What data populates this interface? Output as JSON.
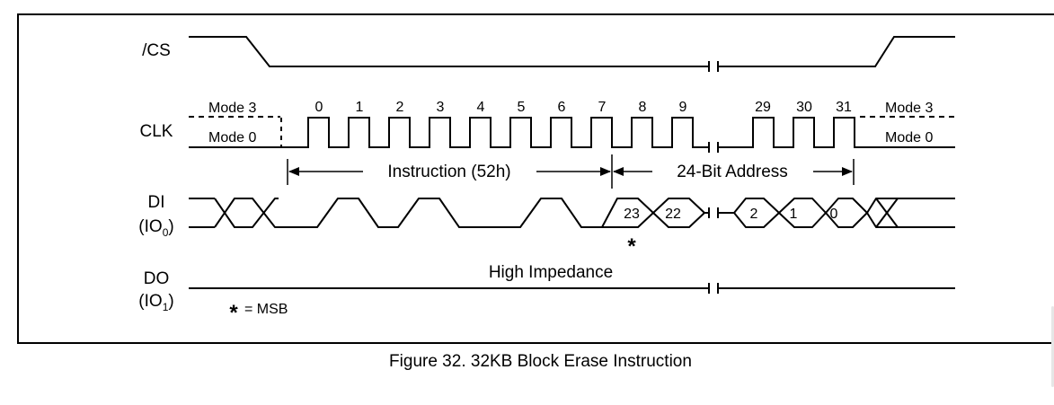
{
  "signals": {
    "cs": "/CS",
    "clk": "CLK",
    "di_main": "DI",
    "di_io": "(IO",
    "di_sub": "0",
    "di_close": ")",
    "do_main": "DO",
    "do_io": "(IO",
    "do_sub": "1",
    "do_close": ")"
  },
  "modes": {
    "left_top": "Mode 3",
    "left_bottom": "Mode 0",
    "right_top": "Mode 3",
    "right_bottom": "Mode 0"
  },
  "clock_numbers": [
    "0",
    "1",
    "2",
    "3",
    "4",
    "5",
    "6",
    "7",
    "8",
    "9",
    "29",
    "30",
    "31"
  ],
  "spans": {
    "instruction": "Instruction (52h)",
    "address": "24-Bit Address"
  },
  "data_bits": [
    "23",
    "22",
    "2",
    "1",
    "0"
  ],
  "msb_star": "*",
  "do_state": "High Impedance",
  "legend": {
    "star": "*",
    "text": "= MSB"
  },
  "caption": "Figure 32. 32KB Block Erase Instruction"
}
